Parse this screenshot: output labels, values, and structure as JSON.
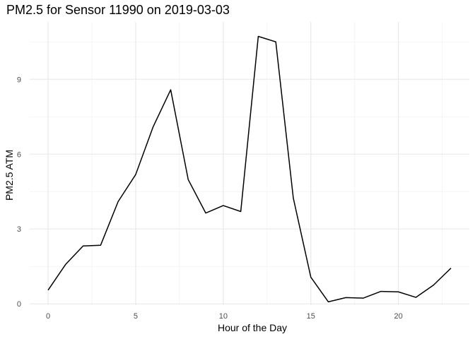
{
  "chart_data": {
    "type": "line",
    "title": "PM2.5 for Sensor 11990 on 2019-03-03",
    "xlabel": "Hour of the Day",
    "ylabel": "PM2.5 ATM",
    "x": [
      0,
      1,
      2,
      3,
      4,
      5,
      6,
      7,
      8,
      9,
      10,
      11,
      12,
      13,
      14,
      15,
      16,
      17,
      18,
      19,
      20,
      21,
      22,
      23
    ],
    "series": [
      {
        "values": [
          0.55,
          1.58,
          2.32,
          2.35,
          4.1,
          5.18,
          7.1,
          8.58,
          4.98,
          3.64,
          3.94,
          3.7,
          10.72,
          10.5,
          4.24,
          1.07,
          0.08,
          0.25,
          0.23,
          0.5,
          0.48,
          0.26,
          0.75,
          1.43
        ],
        "color": "#000000"
      }
    ],
    "xlim": [
      -1.05,
      24.05
    ],
    "ylim": [
      -0.05,
      11.3
    ],
    "x_ticks": [
      0,
      5,
      10,
      15,
      20
    ],
    "x_tick_labels": [
      "0",
      "5",
      "10",
      "15",
      "20"
    ],
    "y_ticks": [
      0,
      3,
      6,
      9
    ],
    "y_tick_labels": [
      "0",
      "3",
      "6",
      "9"
    ],
    "grid": true,
    "legend": "none"
  }
}
